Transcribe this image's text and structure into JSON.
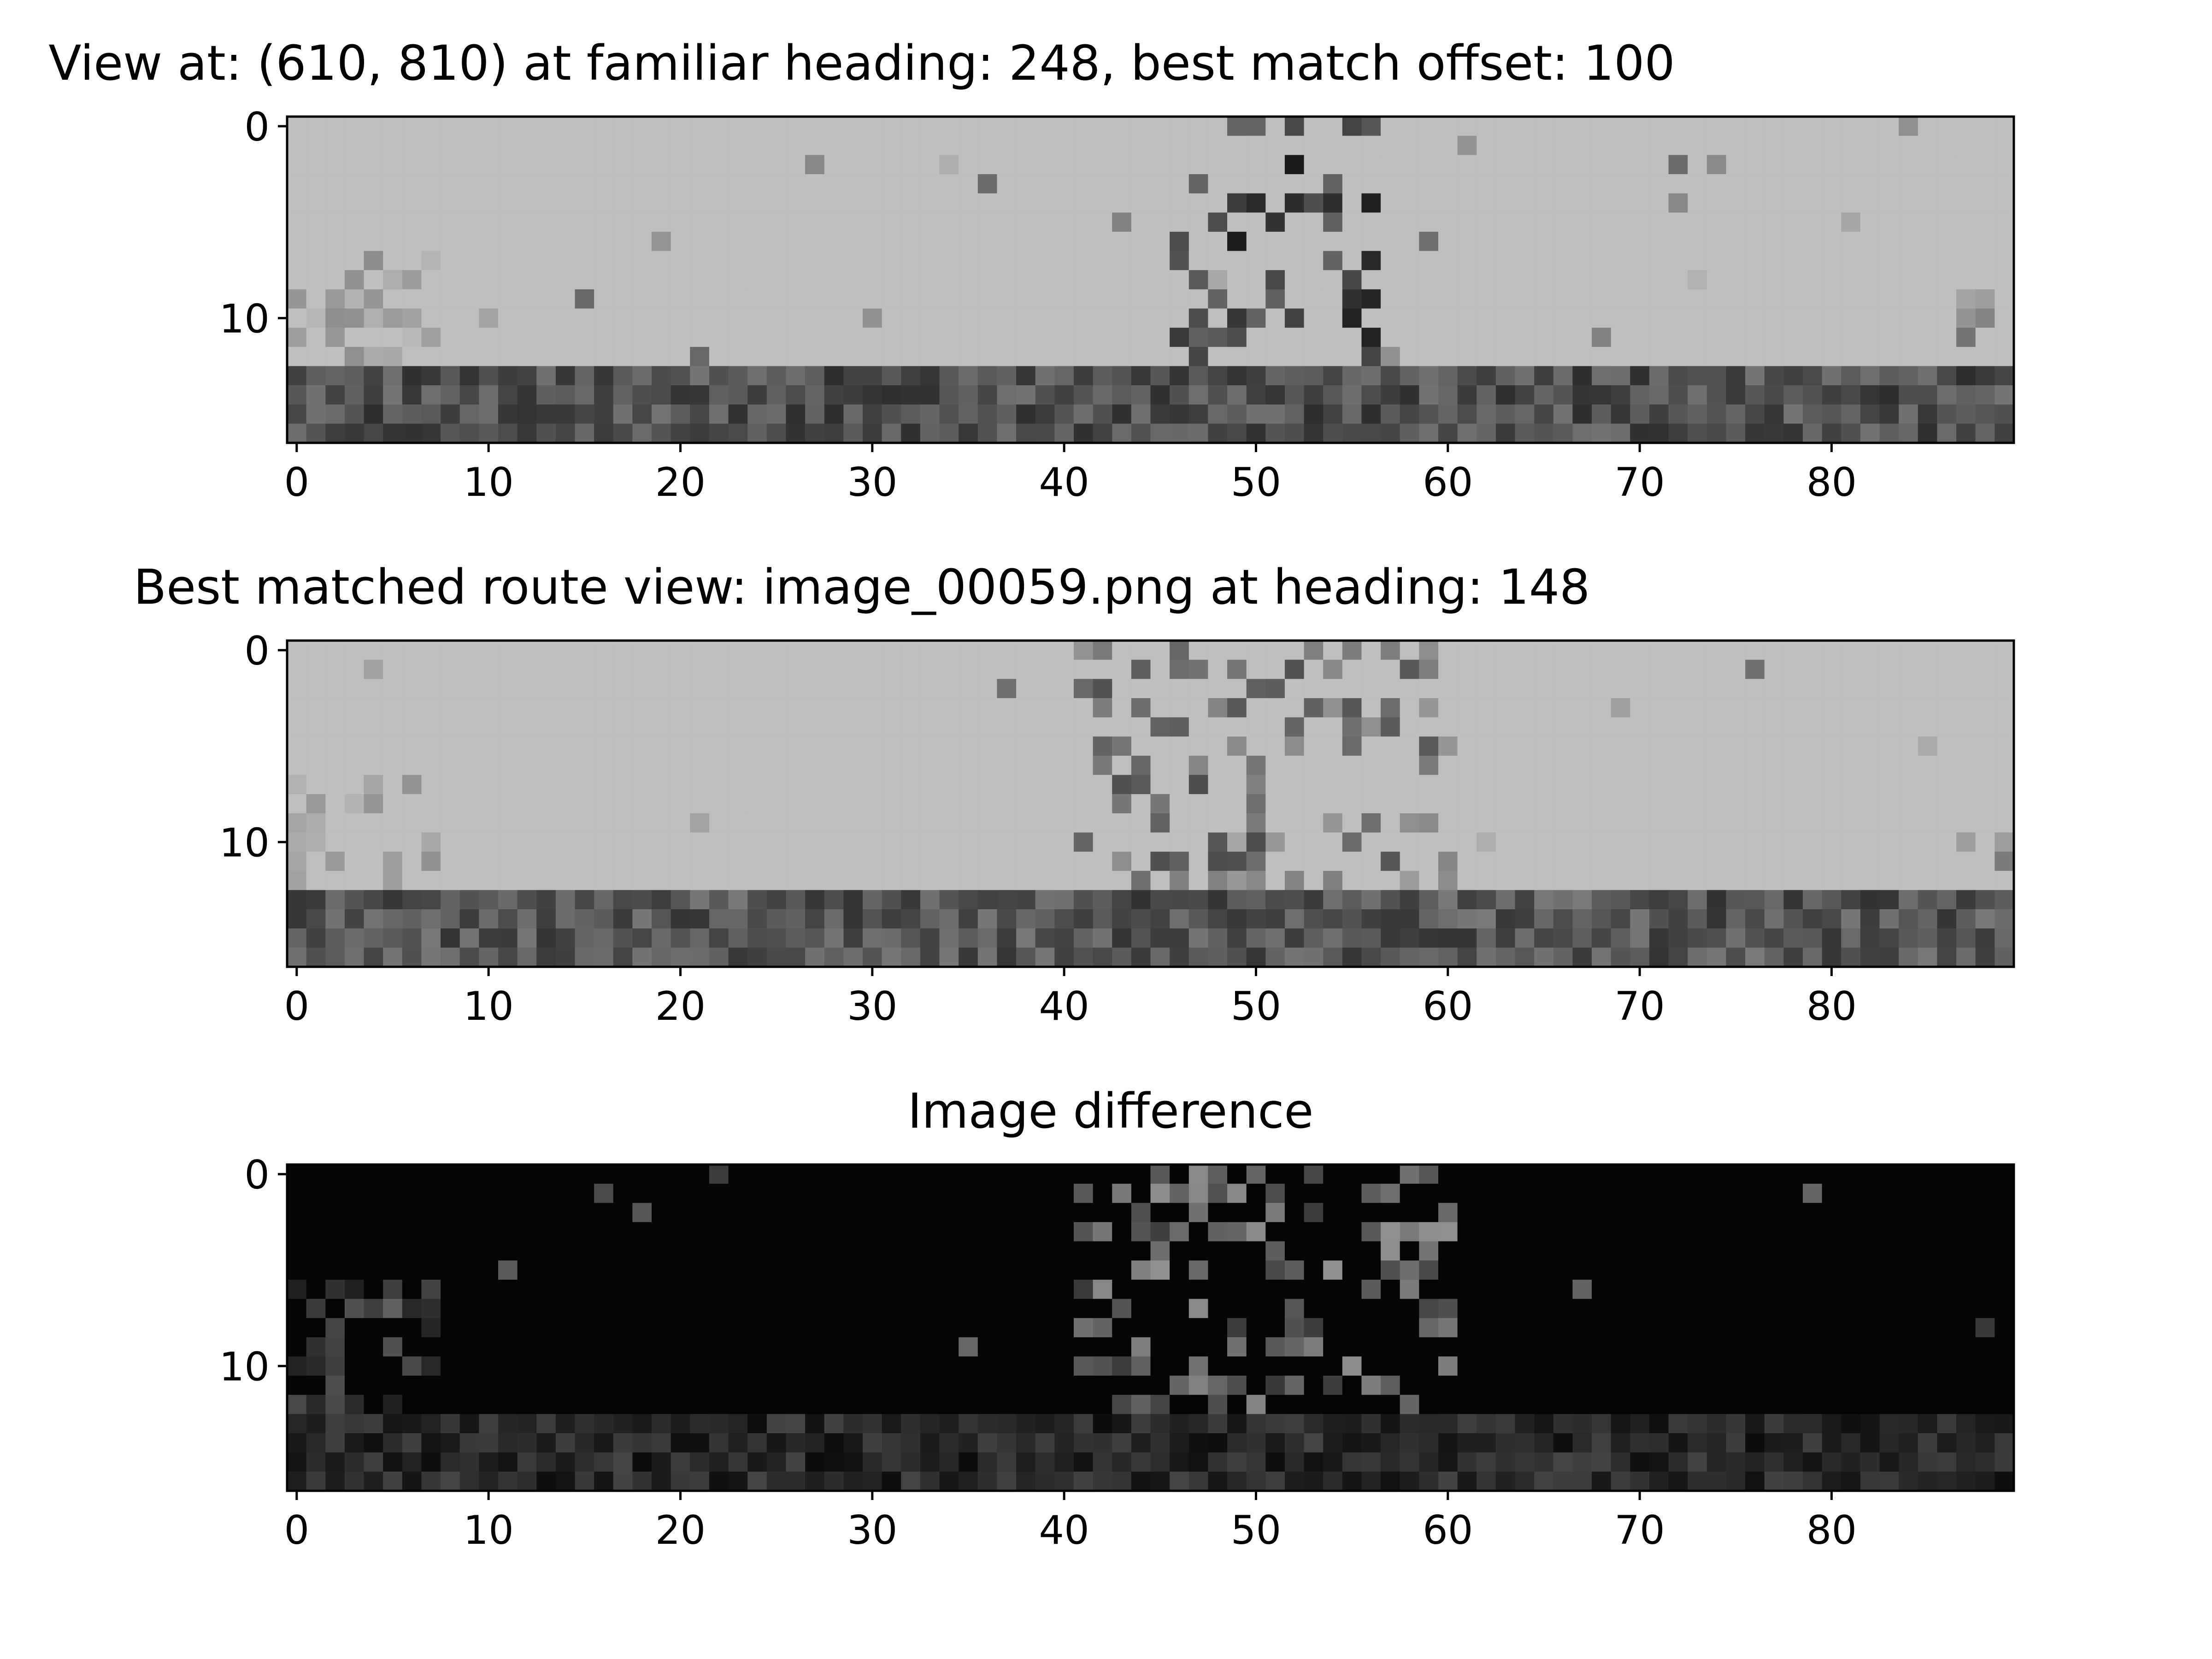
{
  "chart_data": [
    {
      "type": "heatmap",
      "title": "View at: (610, 810) at familiar heading: 248, best match offset: 100",
      "rows": 17,
      "cols": 90,
      "colormap": "gray",
      "x_ticks": [
        "0",
        "10",
        "20",
        "30",
        "40",
        "50",
        "60",
        "70",
        "80"
      ],
      "y_ticks": [
        "0",
        "10"
      ],
      "features": {
        "sky_value": 0.75,
        "ground_start_row": 13,
        "ground_mean": 0.32,
        "object_cols": [
          46,
          56
        ],
        "object_rows": [
          0,
          14
        ],
        "object_value": 0.25
      }
    },
    {
      "type": "heatmap",
      "title": "Best matched route view: image_00059.png at heading: 148",
      "rows": 17,
      "cols": 90,
      "colormap": "gray",
      "x_ticks": [
        "0",
        "10",
        "20",
        "30",
        "40",
        "50",
        "60",
        "70",
        "80"
      ],
      "y_ticks": [
        "0",
        "10"
      ],
      "features": {
        "sky_value": 0.75,
        "ground_start_row": 13,
        "ground_mean": 0.34,
        "object_cols": [
          41,
          60
        ],
        "object_rows": [
          0,
          12
        ],
        "object_value": 0.45
      }
    },
    {
      "type": "heatmap",
      "title": "Image difference",
      "rows": 17,
      "cols": 90,
      "colormap": "gray",
      "x_ticks": [
        "0",
        "10",
        "20",
        "30",
        "40",
        "50",
        "60",
        "70",
        "80"
      ],
      "y_ticks": [
        "0",
        "10"
      ],
      "features": {
        "background_value": 0.02,
        "ground_start_row": 13,
        "ground_mean": 0.16,
        "object_cols": [
          41,
          60
        ],
        "object_rows": [
          0,
          14
        ],
        "object_value": 0.4
      }
    }
  ]
}
